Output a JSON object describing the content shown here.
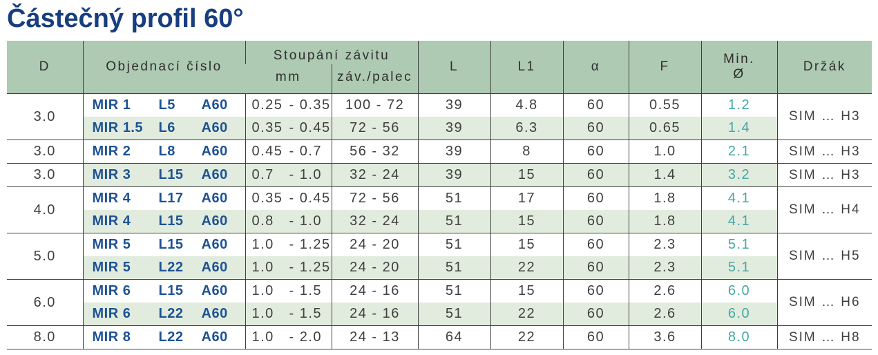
{
  "title": "Částečný profil 60°",
  "colors": {
    "header_bg": "#aecab2",
    "stripe_bg": "#e2ecde",
    "title_text": "#173e7e",
    "order_code_text": "#1d5295",
    "min_diameter_text": "#45a6a4",
    "body_text": "#3f3f3f",
    "grid_line": "#3f3f3f"
  },
  "table": {
    "separator": "-",
    "headers": {
      "d": "D",
      "order": "Objednací číslo",
      "pitch_group": "Stoupání závitu",
      "pitch_mm": "mm",
      "pitch_tpi": "záv./palec",
      "l": "L",
      "l1": "L1",
      "alpha": "α",
      "f": "F",
      "min_line1": "Min.",
      "min_line2": "Ø",
      "holder": "Držák"
    },
    "groups": [
      {
        "d": "3.0",
        "holder": "SIM … H3",
        "rows": [
          {
            "order": [
              "MIR 1",
              "L5",
              "A60"
            ],
            "mm_min": "0.25",
            "mm_max": "0.35",
            "tpi": "100 - 72",
            "l": "39",
            "l1": "4.8",
            "alpha": "60",
            "f": "0.55",
            "min_d": "1.2"
          },
          {
            "order": [
              "MIR 1.5",
              "L6",
              "A60"
            ],
            "mm_min": "0.35",
            "mm_max": "0.45",
            "tpi": "72 - 56",
            "l": "39",
            "l1": "6.3",
            "alpha": "60",
            "f": "0.65",
            "min_d": "1.4"
          }
        ]
      },
      {
        "d": "3.0",
        "holder": "SIM … H3",
        "rows": [
          {
            "order": [
              "MIR 2",
              "L8",
              "A60"
            ],
            "mm_min": "0.45",
            "mm_max": "0.7",
            "tpi": "56 - 32",
            "l": "39",
            "l1": "8",
            "alpha": "60",
            "f": "1.0",
            "min_d": "2.1"
          }
        ]
      },
      {
        "d": "3.0",
        "holder": "SIM … H3",
        "rows": [
          {
            "order": [
              "MIR 3",
              "L15",
              "A60"
            ],
            "mm_min": "0.7",
            "mm_max": "1.0",
            "tpi": "32 - 24",
            "l": "39",
            "l1": "15",
            "alpha": "60",
            "f": "1.4",
            "min_d": "3.2"
          }
        ]
      },
      {
        "d": "4.0",
        "holder": "SIM … H4",
        "rows": [
          {
            "order": [
              "MIR 4",
              "L17",
              "A60"
            ],
            "mm_min": "0.35",
            "mm_max": "0.45",
            "tpi": "72 - 56",
            "l": "51",
            "l1": "17",
            "alpha": "60",
            "f": "1.8",
            "min_d": "4.1"
          },
          {
            "order": [
              "MIR 4",
              "L15",
              "A60"
            ],
            "mm_min": "0.8",
            "mm_max": "1.0",
            "tpi": "32 - 24",
            "l": "51",
            "l1": "15",
            "alpha": "60",
            "f": "1.8",
            "min_d": "4.1"
          }
        ]
      },
      {
        "d": "5.0",
        "holder": "SIM … H5",
        "rows": [
          {
            "order": [
              "MIR 5",
              "L15",
              "A60"
            ],
            "mm_min": "1.0",
            "mm_max": "1.25",
            "tpi": "24 - 20",
            "l": "51",
            "l1": "15",
            "alpha": "60",
            "f": "2.3",
            "min_d": "5.1"
          },
          {
            "order": [
              "MIR 5",
              "L22",
              "A60"
            ],
            "mm_min": "1.0",
            "mm_max": "1.25",
            "tpi": "24 - 20",
            "l": "51",
            "l1": "22",
            "alpha": "60",
            "f": "2.3",
            "min_d": "5.1"
          }
        ]
      },
      {
        "d": "6.0",
        "holder": "SIM … H6",
        "rows": [
          {
            "order": [
              "MIR 6",
              "L15",
              "A60"
            ],
            "mm_min": "1.0",
            "mm_max": "1.5",
            "tpi": "24 - 16",
            "l": "51",
            "l1": "15",
            "alpha": "60",
            "f": "2.6",
            "min_d": "6.0"
          },
          {
            "order": [
              "MIR 6",
              "L22",
              "A60"
            ],
            "mm_min": "1.0",
            "mm_max": "1.5",
            "tpi": "24 - 16",
            "l": "51",
            "l1": "22",
            "alpha": "60",
            "f": "2.6",
            "min_d": "6.0"
          }
        ]
      },
      {
        "d": "8.0",
        "holder": "SIM … H8",
        "rows": [
          {
            "order": [
              "MIR 8",
              "L22",
              "A60"
            ],
            "mm_min": "1.0",
            "mm_max": "2.0",
            "tpi": "24 - 13",
            "l": "64",
            "l1": "22",
            "alpha": "60",
            "f": "3.6",
            "min_d": "8.0"
          }
        ]
      }
    ]
  }
}
